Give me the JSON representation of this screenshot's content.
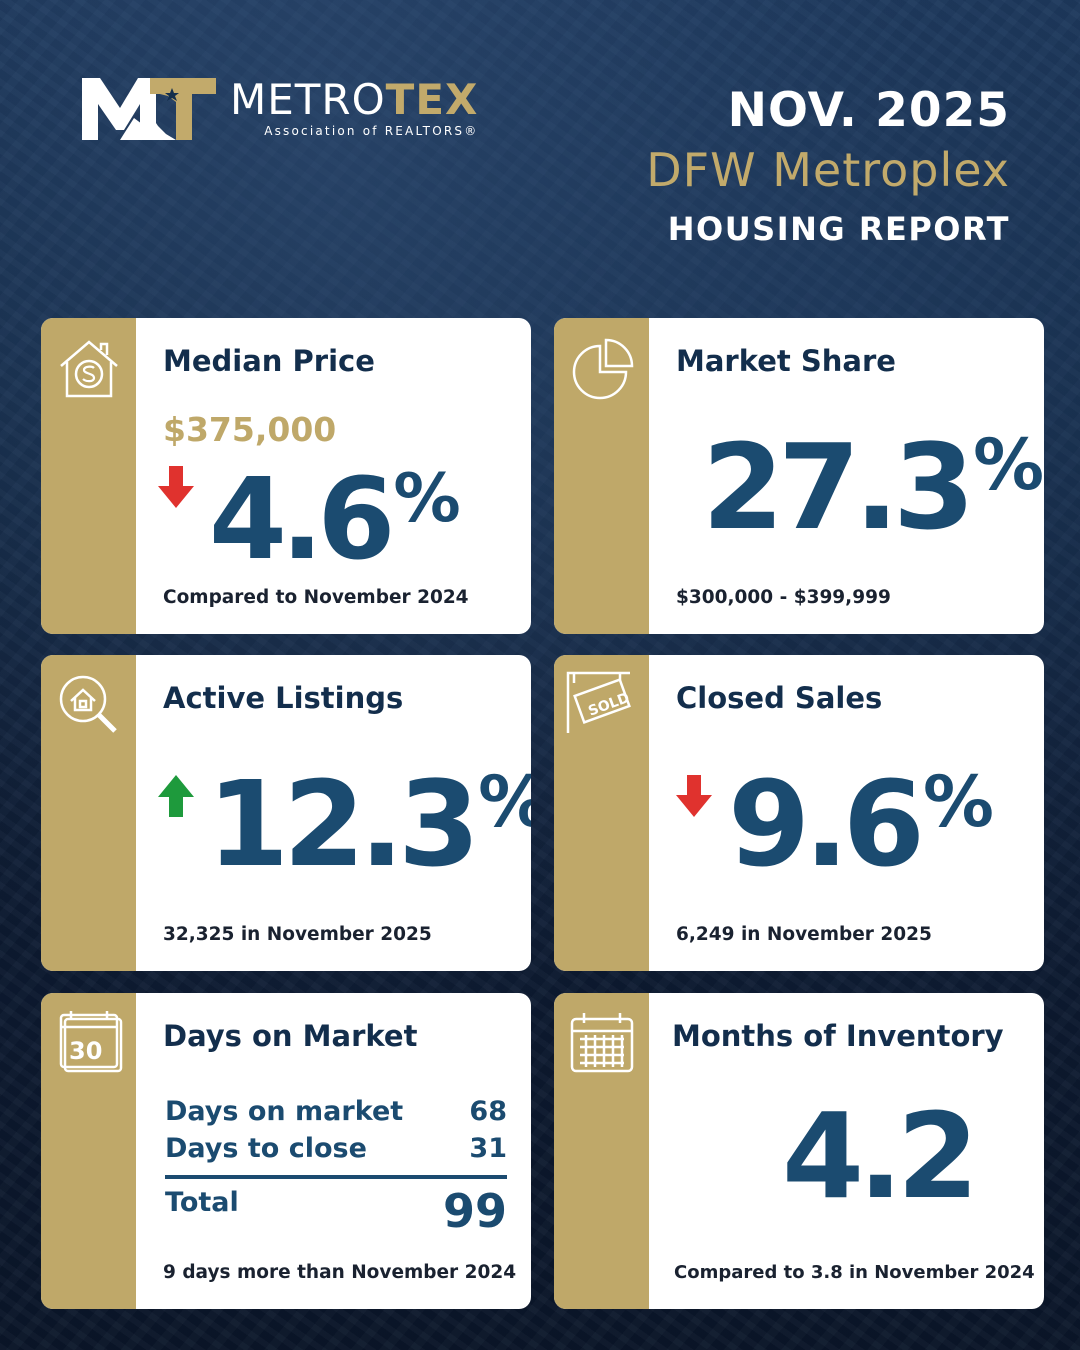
{
  "brand": {
    "name_part1": "METRO",
    "name_part2": "TEX",
    "tagline": "Association of REALTORS®",
    "mark_letters": "MT"
  },
  "header": {
    "date": "NOV. 2025",
    "region": "DFW Metroplex",
    "report": "HOUSING REPORT"
  },
  "colors": {
    "navy": "#132e4c",
    "stat_blue": "#1b4b70",
    "gold": "#bfa869",
    "down_red": "#e0322e",
    "up_green": "#1e9a3c"
  },
  "cards": {
    "median_price": {
      "icon": "house-dollar-icon",
      "title": "Median Price",
      "price": "$375,000",
      "direction": "down",
      "change": "4.6",
      "unit": "%",
      "footnote": "Compared to November 2024"
    },
    "market_share": {
      "icon": "pie-chart-icon",
      "title": "Market Share",
      "value": "27.3",
      "unit": "%",
      "footnote": "$300,000 - $399,999"
    },
    "active_listings": {
      "icon": "house-search-icon",
      "title": "Active Listings",
      "direction": "up",
      "change": "12.3",
      "unit": "%",
      "footnote": "32,325 in November 2025"
    },
    "closed_sales": {
      "icon": "sold-sign-icon",
      "title": "Closed Sales",
      "sign_text": "SOLD",
      "direction": "down",
      "change": "9.6",
      "unit": "%",
      "footnote": "6,249 in November 2025"
    },
    "days_on_market": {
      "icon": "calendar-30-icon",
      "icon_text": "30",
      "title": "Days on Market",
      "rows": [
        {
          "label": "Days on market",
          "value": "68"
        },
        {
          "label": "Days to close",
          "value": "31"
        }
      ],
      "total_label": "Total",
      "total_value": "99",
      "footnote": "9 days more than November 2024"
    },
    "months_inventory": {
      "icon": "calendar-grid-icon",
      "title": "Months of Inventory",
      "value": "4.2",
      "footnote": "Compared to 3.8 in November 2024"
    }
  }
}
